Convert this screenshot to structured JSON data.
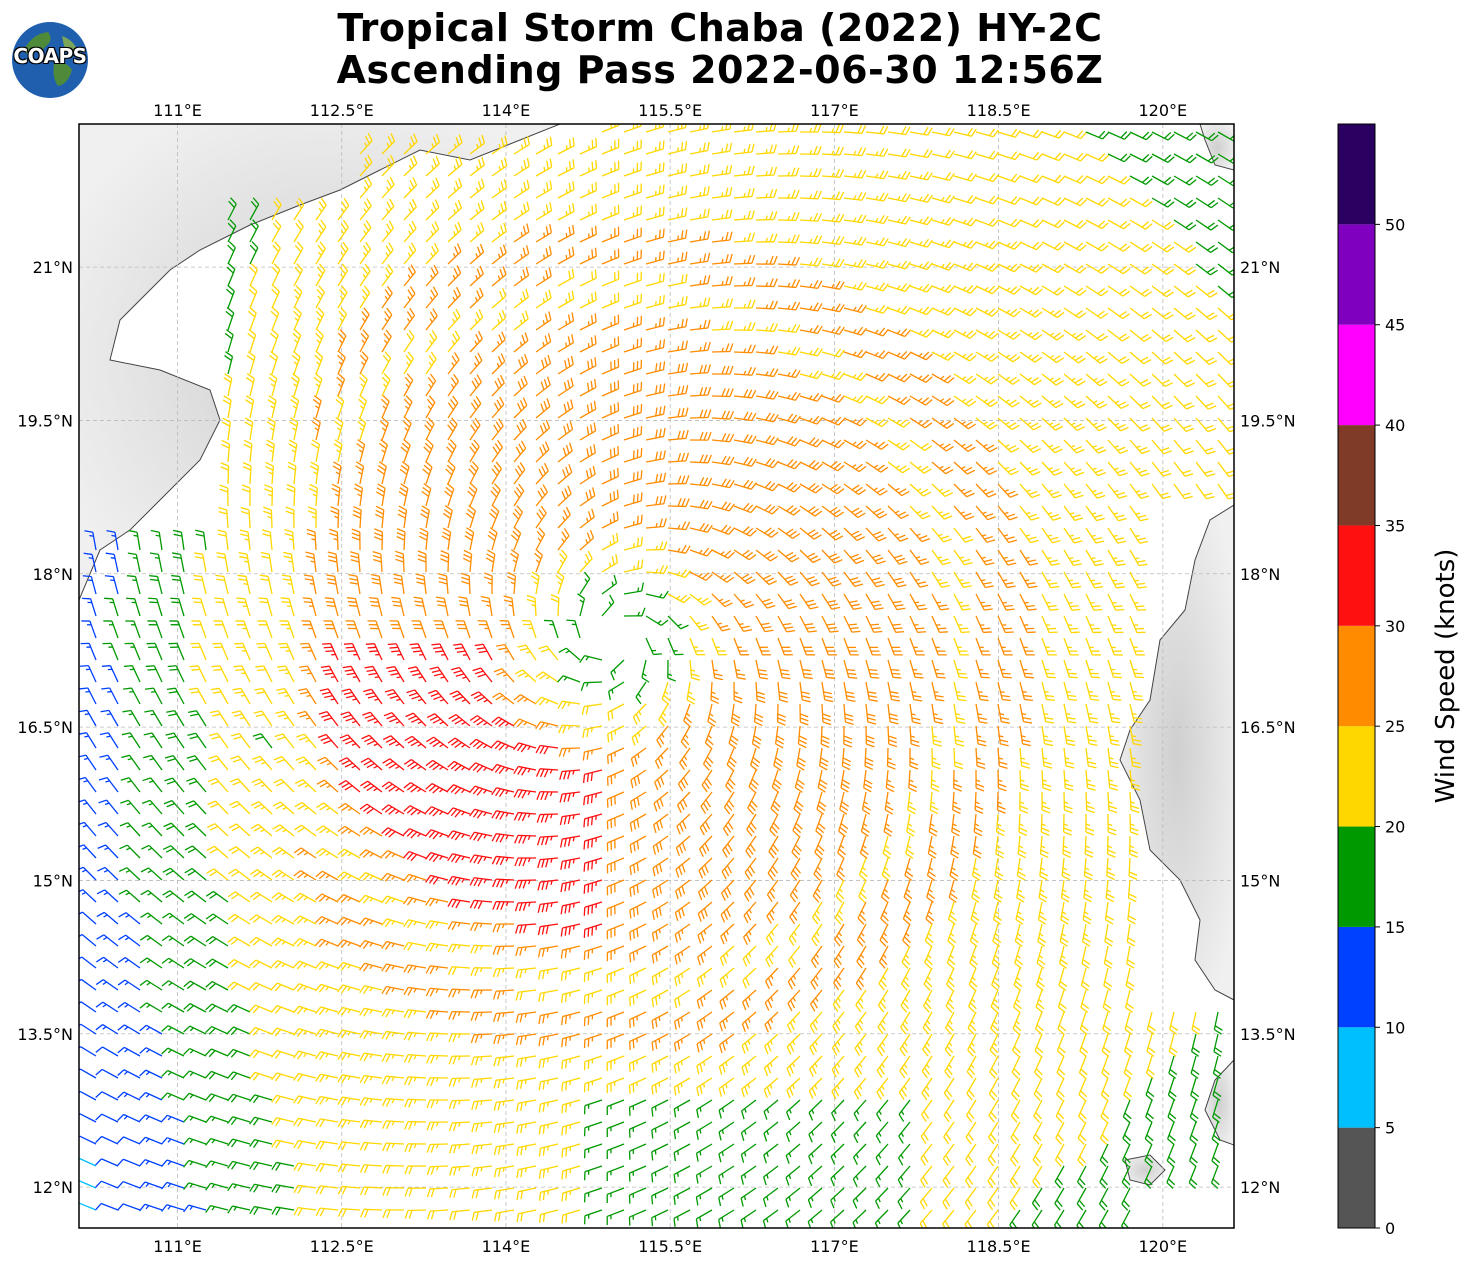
{
  "title": {
    "line1": "Tropical Storm Chaba (2022) HY-2C",
    "line2": "Ascending Pass 2022-06-30 12:56Z"
  },
  "logo": {
    "text": "COAPS",
    "icon": "globe-logo-icon"
  },
  "map": {
    "lon_range": [
      110.1,
      120.65
    ],
    "lat_range": [
      11.6,
      22.4
    ],
    "lon_ticks": [
      "111°E",
      "112.5°E",
      "114°E",
      "115.5°E",
      "117°E",
      "118.5°E",
      "120°E"
    ],
    "lon_tick_values": [
      111,
      112.5,
      114,
      115.5,
      117,
      118.5,
      120
    ],
    "lat_ticks": [
      "21°N",
      "19.5°N",
      "18°N",
      "16.5°N",
      "15°N",
      "13.5°N",
      "12°N"
    ],
    "lat_tick_values": [
      21,
      19.5,
      18,
      16.5,
      15,
      13.5,
      12
    ],
    "gridlines": true,
    "storm_center": {
      "lon": 115.0,
      "lat": 17.35
    },
    "barb_type": "wind-barbs",
    "land_color": "#eeeeee",
    "ocean_color": "#ffffff"
  },
  "colorbar": {
    "title": "Wind Speed (knots)",
    "tick_labels": [
      "0",
      "5",
      "10",
      "15",
      "20",
      "25",
      "30",
      "35",
      "40",
      "45",
      "50"
    ],
    "bins": [
      {
        "min": 0,
        "max": 5,
        "color": "#555555"
      },
      {
        "min": 5,
        "max": 10,
        "color": "#00bfff"
      },
      {
        "min": 10,
        "max": 15,
        "color": "#0040ff"
      },
      {
        "min": 15,
        "max": 20,
        "color": "#009900"
      },
      {
        "min": 20,
        "max": 25,
        "color": "#ffd700"
      },
      {
        "min": 25,
        "max": 30,
        "color": "#ff8c00"
      },
      {
        "min": 30,
        "max": 35,
        "color": "#ff1010"
      },
      {
        "min": 35,
        "max": 40,
        "color": "#7f3a28"
      },
      {
        "min": 40,
        "max": 45,
        "color": "#ff00ff"
      },
      {
        "min": 45,
        "max": 50,
        "color": "#8000c0"
      },
      {
        "min": 50,
        "max": 55,
        "color": "#2a0060"
      }
    ]
  }
}
